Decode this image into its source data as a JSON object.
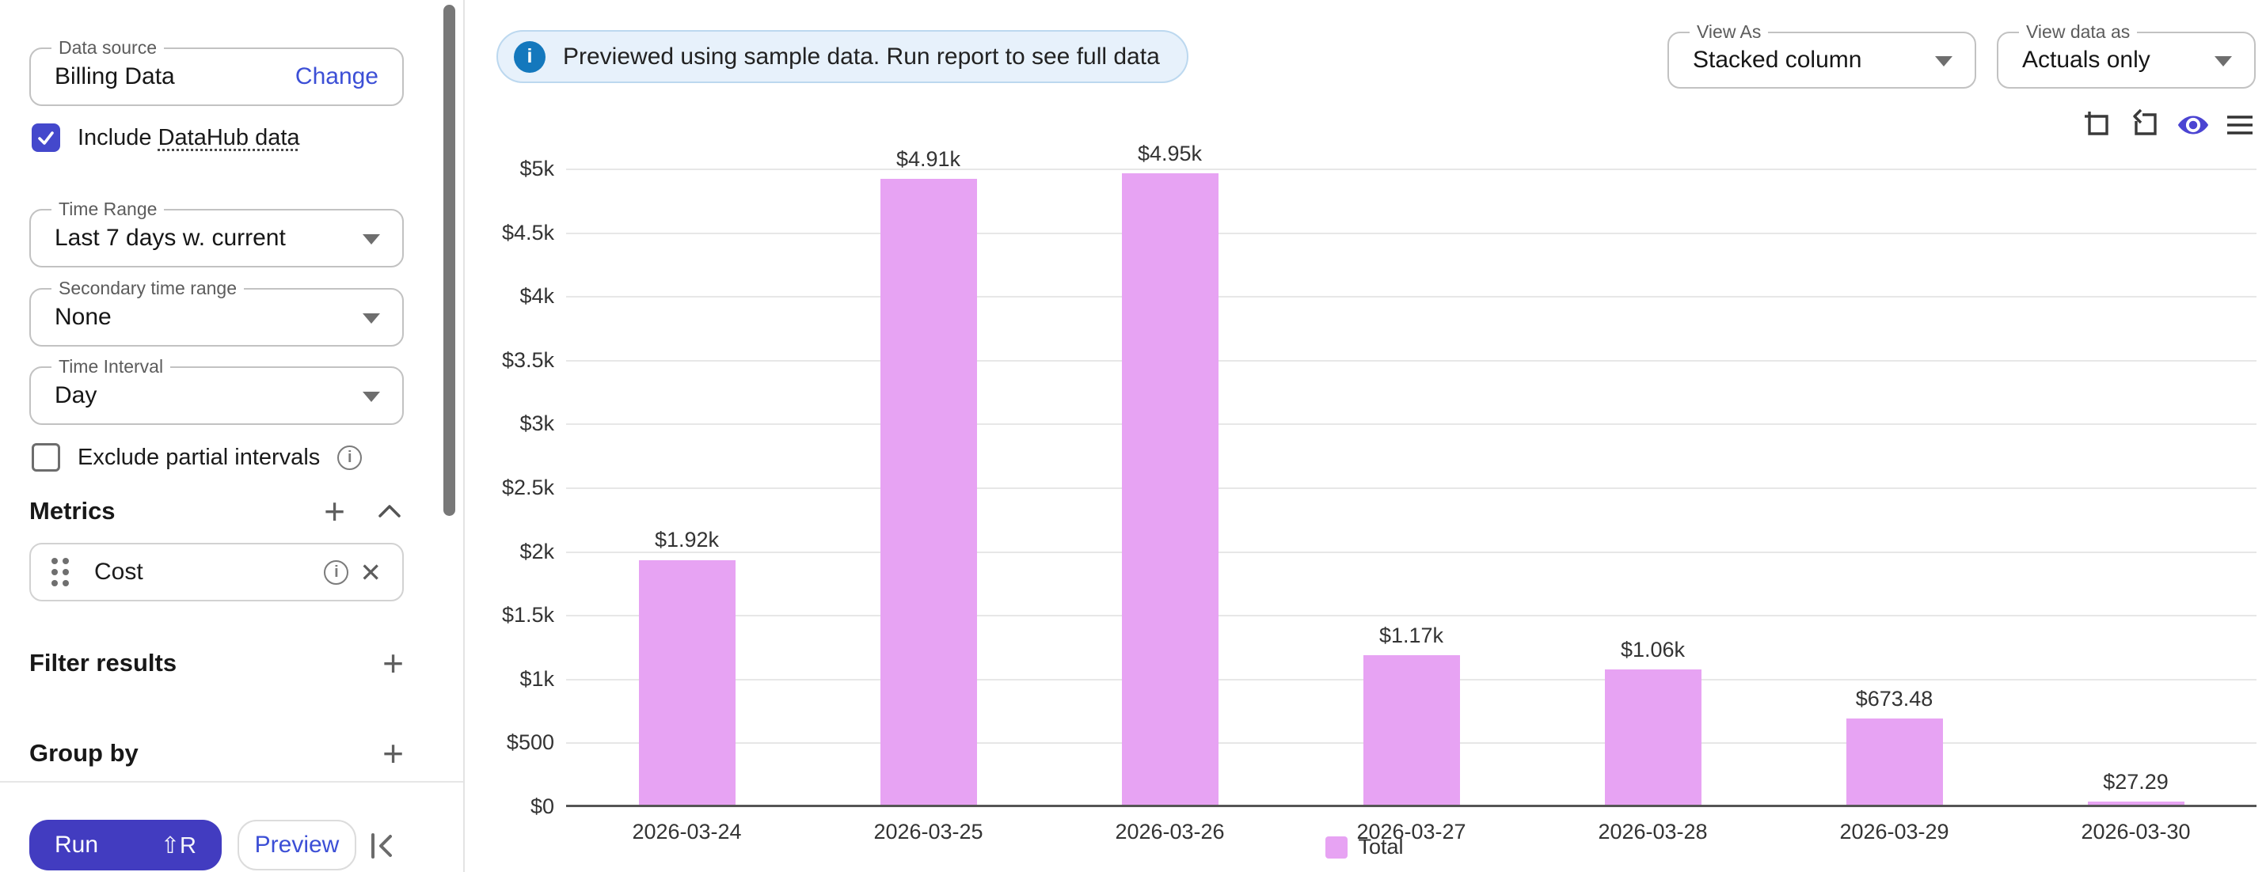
{
  "sidebar": {
    "data_source": {
      "label": "Data source",
      "value": "Billing Data",
      "change_label": "Change"
    },
    "include_datahub": {
      "checked": true,
      "label_prefix": "Include ",
      "label_link": "DataHub data"
    },
    "time_range": {
      "label": "Time Range",
      "value": "Last 7 days w. current"
    },
    "secondary_time_range": {
      "label": "Secondary time range",
      "value": "None"
    },
    "time_interval": {
      "label": "Time Interval",
      "value": "Day"
    },
    "exclude_partial": {
      "checked": false,
      "label": "Exclude partial intervals"
    },
    "metrics": {
      "title": "Metrics",
      "items": [
        {
          "name": "Cost"
        }
      ]
    },
    "filter_results": {
      "title": "Filter results"
    },
    "group_by": {
      "title": "Group by"
    },
    "footer": {
      "run_label": "Run",
      "run_shortcut": "⇧R",
      "preview_label": "Preview"
    }
  },
  "banner": {
    "text": "Previewed using sample data. Run report to see full data",
    "icon": "info-icon"
  },
  "toolbar": {
    "view_as": {
      "label": "View As",
      "value": "Stacked column"
    },
    "view_data_as": {
      "label": "View data as",
      "value": "Actuals only"
    },
    "chart_icons": [
      "square-plus-icon",
      "square-reset-arrow-icon",
      "eye-icon",
      "menu-icon"
    ]
  },
  "chart_data": {
    "type": "bar",
    "title": "",
    "categories": [
      "2026-03-24",
      "2026-03-25",
      "2026-03-26",
      "2026-03-27",
      "2026-03-28",
      "2026-03-29",
      "2026-03-30"
    ],
    "series": [
      {
        "name": "Total",
        "values": [
          1920,
          4910,
          4950,
          1170,
          1060,
          673.48,
          27.29
        ]
      }
    ],
    "value_labels": [
      "$1.92k",
      "$4.91k",
      "$4.95k",
      "$1.17k",
      "$1.06k",
      "$673.48",
      "$27.29"
    ],
    "y_tick_labels": [
      "$5k",
      "$4.5k",
      "$4k",
      "$3.5k",
      "$3k",
      "$2.5k",
      "$2k",
      "$1.5k",
      "$1k",
      "$500",
      "$0"
    ],
    "ylim": [
      0,
      5000
    ],
    "grid": true,
    "legend": {
      "position": "bottom",
      "entries": [
        {
          "label": "Total",
          "color": "#e7a3f3"
        }
      ]
    }
  },
  "colors": {
    "accent_indigo": "#423cc0",
    "link_blue": "#3c4fd6",
    "bar_fill": "#e7a3f3",
    "banner_bg": "#e7f1fb",
    "banner_icon": "#1478bd",
    "eye_icon": "#4b44d2"
  }
}
